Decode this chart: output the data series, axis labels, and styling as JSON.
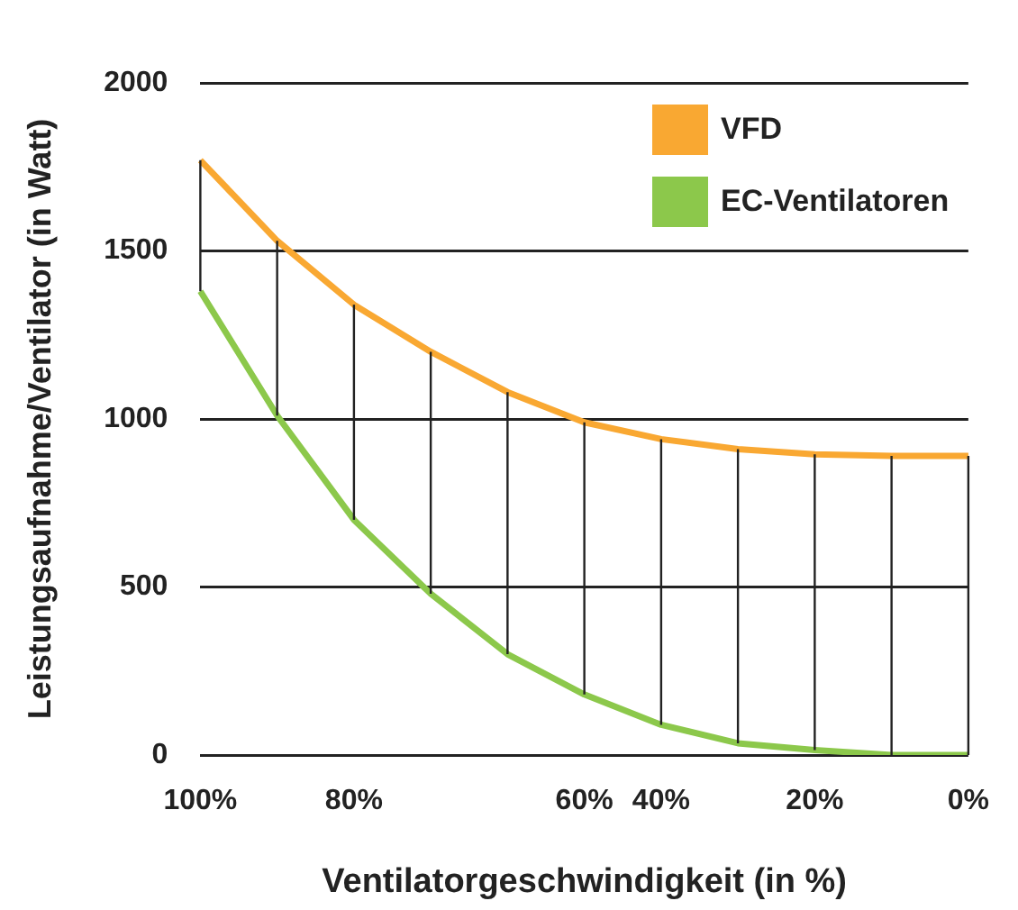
{
  "chart_data": {
    "type": "line",
    "xlabel": "Ventilatorgeschwindigkeit (in %)",
    "ylabel": "Leistungsaufnahme/Ventilator (in Watt)",
    "categories": [
      "100%",
      null,
      "80%",
      null,
      null,
      "60%",
      "40%",
      null,
      "20%",
      null,
      "0%"
    ],
    "series": [
      {
        "name": "VFD",
        "color": "#f9a832",
        "values": [
          1770,
          1530,
          1340,
          1200,
          1080,
          990,
          940,
          910,
          895,
          890,
          890
        ]
      },
      {
        "name": "EC-Ventilatoren",
        "color": "#8cc84b",
        "values": [
          1380,
          1010,
          700,
          480,
          300,
          180,
          90,
          35,
          15,
          0,
          0
        ],
        "errors": [
          [
            1380,
            1770
          ],
          [
            1010,
            1530
          ],
          [
            700,
            1340
          ],
          [
            480,
            1200
          ],
          [
            300,
            1080
          ],
          [
            180,
            990
          ],
          [
            90,
            940
          ],
          [
            35,
            910
          ],
          [
            15,
            895
          ],
          [
            0,
            890
          ],
          [
            0,
            890
          ]
        ]
      }
    ],
    "ylim": [
      0,
      2000
    ],
    "yticks": [
      0,
      500,
      1000,
      1500,
      2000
    ],
    "grid": "y",
    "legend": "top right",
    "marker": "none",
    "line_style": "solid"
  }
}
